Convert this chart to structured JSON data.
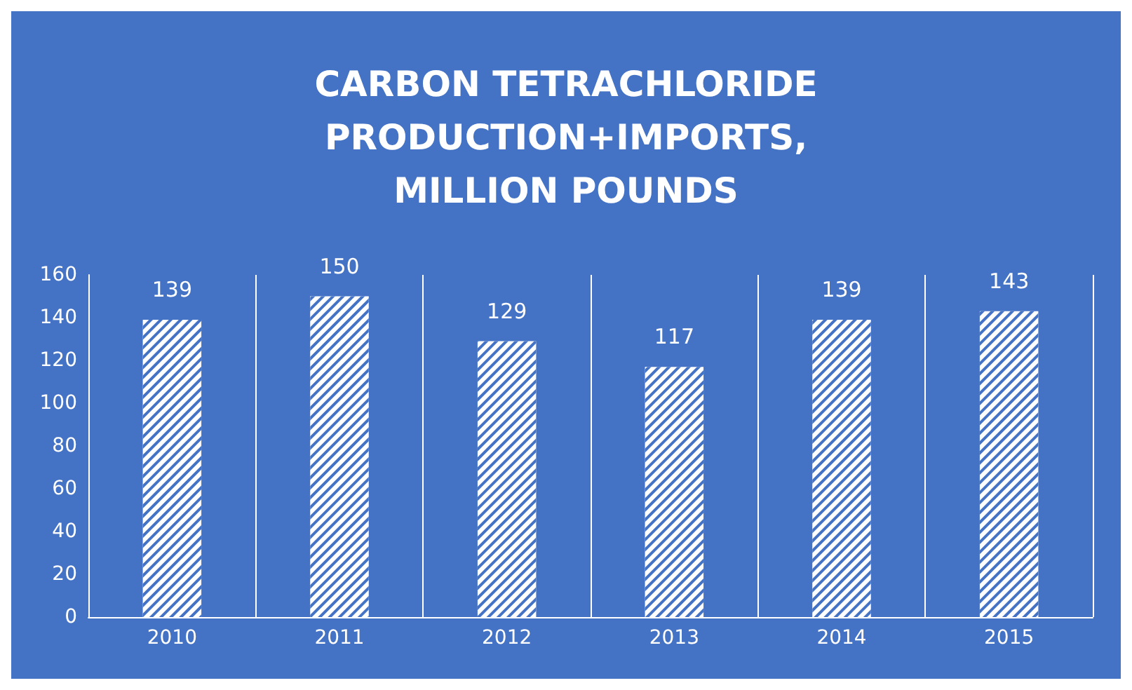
{
  "chart_data": {
    "type": "bar",
    "title": "CARBON TETRACHLORIDE\nPRODUCTION+IMPORTS,\nMILLION POUNDS",
    "categories": [
      "2010",
      "2011",
      "2012",
      "2013",
      "2014",
      "2015"
    ],
    "values": [
      139,
      150,
      129,
      117,
      139,
      143
    ],
    "color": "#ffffff",
    "ylim": [
      0,
      160
    ],
    "yticks": [
      0,
      20,
      40,
      60,
      80,
      100,
      120,
      140,
      160
    ],
    "grid": "x",
    "data_labels": true
  }
}
